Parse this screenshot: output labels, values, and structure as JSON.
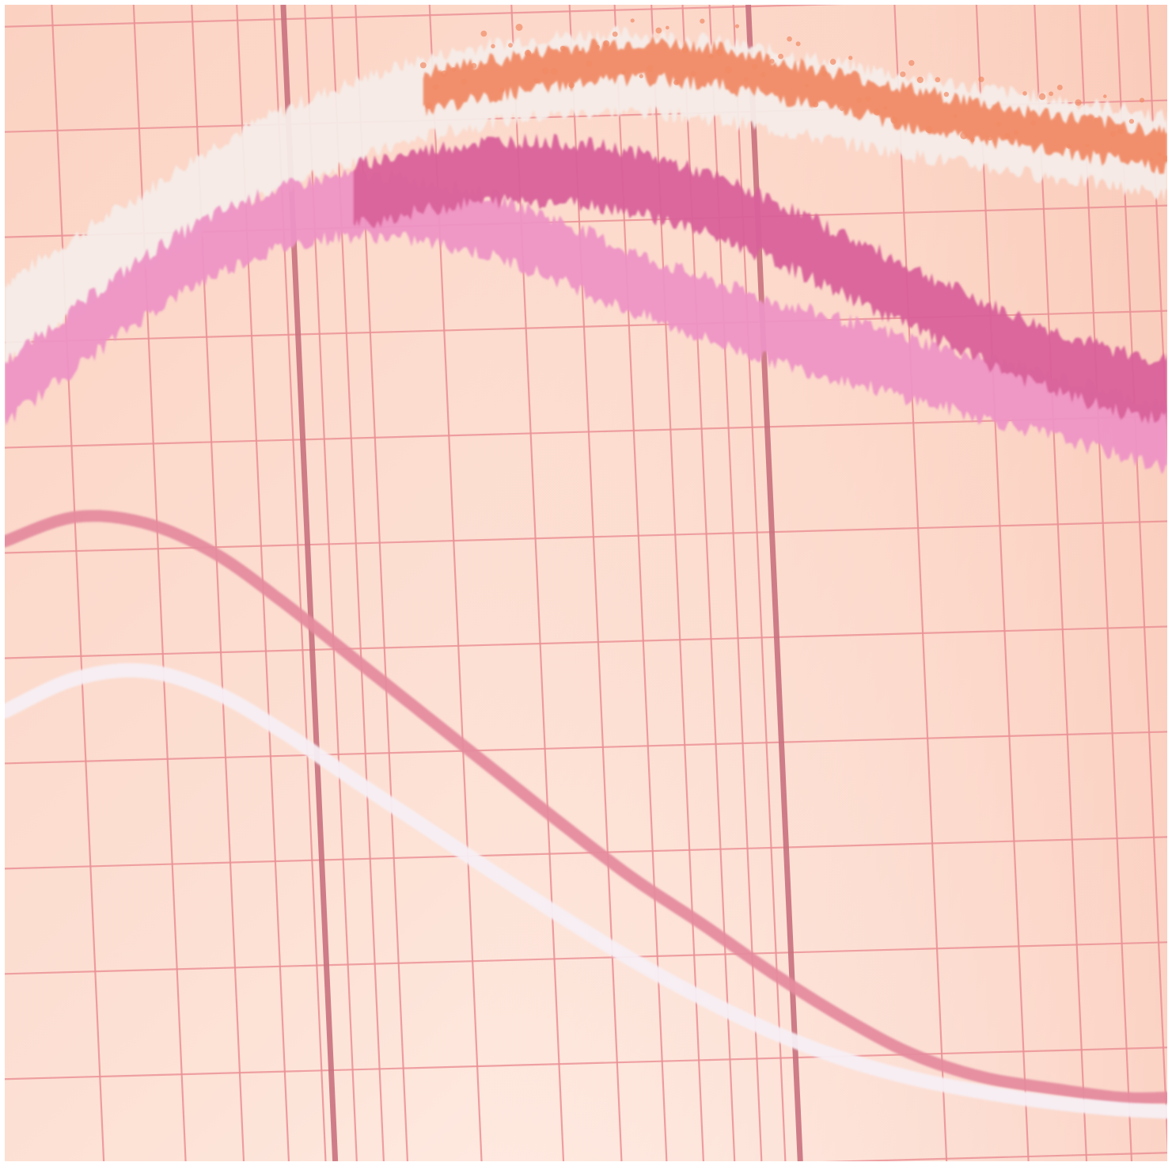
{
  "chart_data": {
    "type": "line",
    "title": "",
    "xlabel": "",
    "ylabel": "",
    "grid": true,
    "legend": "none",
    "xlim": [
      0,
      100
    ],
    "ylim": [
      0,
      100
    ],
    "x_major_gridlines": [
      24.5,
      64.5
    ],
    "series": [
      {
        "color": "#f6ece8",
        "noisy": true,
        "x": [
          0,
          6,
          12,
          18,
          24,
          30,
          36,
          42,
          48,
          54,
          60,
          66,
          72,
          78,
          84,
          90,
          96,
          100
        ],
        "values": [
          72.5,
          76.5,
          80.4,
          84.4,
          87.5,
          89.9,
          91.9,
          93.2,
          93.9,
          94.1,
          93.6,
          92.6,
          91.5,
          90.4,
          89.4,
          88.5,
          87.6,
          86.9
        ]
      },
      {
        "color": "#ee94c5",
        "noisy": true,
        "x": [
          0,
          6,
          12,
          18,
          24,
          30,
          36,
          42,
          48,
          54,
          60,
          66,
          72,
          78,
          84,
          90,
          96,
          100
        ],
        "values": [
          66.5,
          71.1,
          75.6,
          79.2,
          81.6,
          82.6,
          82.1,
          80.8,
          78.6,
          76.0,
          73.8,
          71.8,
          70.2,
          68.5,
          66.9,
          65.3,
          63.6,
          62.5
        ]
      },
      {
        "color": "#d9619a",
        "noisy": true,
        "x": [
          30,
          36,
          42,
          48,
          54,
          60,
          66,
          72,
          78,
          84,
          90,
          96,
          100
        ],
        "values": [
          83.5,
          84.8,
          85.6,
          85.5,
          84.7,
          82.9,
          80.5,
          77.6,
          74.7,
          71.8,
          69.3,
          67.4,
          66.7
        ]
      },
      {
        "color": "#f18a65",
        "noisy": true,
        "x": [
          36,
          42,
          48,
          54,
          60,
          66,
          72,
          78,
          84,
          90,
          96,
          100
        ],
        "values": [
          92.5,
          93.6,
          94.6,
          95.1,
          94.8,
          93.7,
          92.4,
          91.1,
          89.9,
          88.9,
          88.0,
          87.5
        ]
      },
      {
        "color": "#e58b9e",
        "noisy": false,
        "x": [
          0,
          6,
          12,
          18,
          24,
          30,
          36,
          42,
          48,
          54,
          60,
          66,
          72,
          78,
          84,
          90,
          96,
          100
        ],
        "values": [
          53.6,
          55.7,
          55.2,
          52.6,
          48.3,
          43.5,
          38.7,
          33.9,
          29.1,
          24.5,
          20.5,
          16.3,
          12.5,
          9.3,
          7.3,
          6.3,
          5.5,
          5.5
        ]
      },
      {
        "color": "#f7eff4",
        "noisy": false,
        "x": [
          0,
          6,
          12,
          18,
          24,
          30,
          36,
          42,
          48,
          54,
          60,
          66,
          72,
          78,
          84,
          90,
          96,
          100
        ],
        "values": [
          38.9,
          41.7,
          42.4,
          40.6,
          37.1,
          33.0,
          29.0,
          25.0,
          21.1,
          17.4,
          14.1,
          11.2,
          8.9,
          7.2,
          6.0,
          5.1,
          4.5,
          4.3
        ]
      }
    ]
  }
}
